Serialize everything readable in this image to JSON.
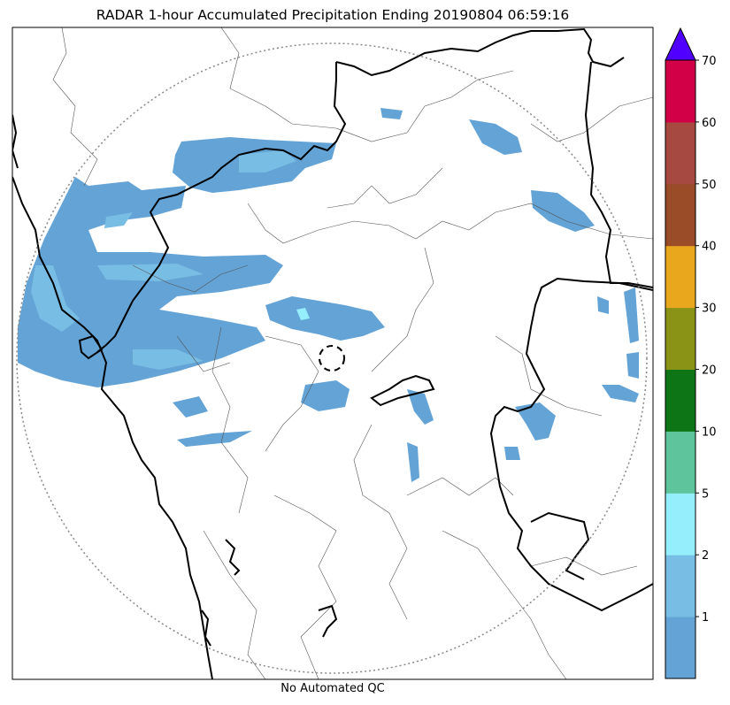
{
  "title": "RADAR 1-hour Accumulated Precipitation Ending 20190804 06:59:16",
  "caption": "No Automated QC",
  "colorbar": {
    "levels": [
      {
        "value": 0,
        "label": "",
        "color": "#64a3d6"
      },
      {
        "value": 1,
        "label": "1",
        "color": "#78bde4"
      },
      {
        "value": 2,
        "label": "2",
        "color": "#95eefb"
      },
      {
        "value": 5,
        "label": "5",
        "color": "#5ec49b"
      },
      {
        "value": 10,
        "label": "10",
        "color": "#0e7516"
      },
      {
        "value": 20,
        "label": "20",
        "color": "#8b9317"
      },
      {
        "value": 30,
        "label": "30",
        "color": "#e8a71c"
      },
      {
        "value": 40,
        "label": "40",
        "color": "#994c27"
      },
      {
        "value": 50,
        "label": "50",
        "color": "#a64940"
      },
      {
        "value": 60,
        "label": "60",
        "color": "#d20046"
      }
    ],
    "top_label": "70",
    "extend_color": "#5000ff"
  },
  "map": {
    "range_ring_style": "dotted",
    "radar_site_marker": "dashed-circle",
    "precipitation_color": "#64a3d6",
    "light_precip_color": "#78bde4",
    "moderate_precip_color": "#95eefb"
  }
}
